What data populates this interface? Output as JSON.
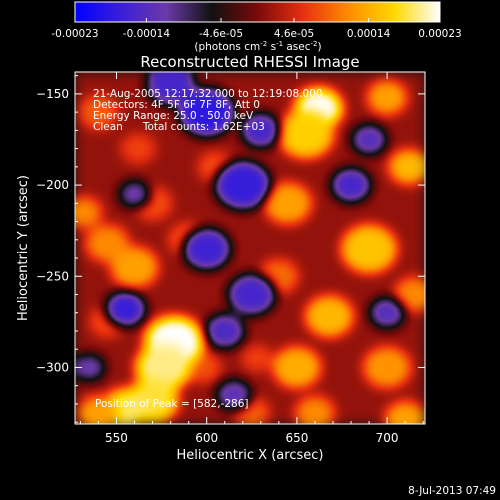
{
  "colorbar": {
    "ticks": [
      "-0.00023",
      "-0.00014",
      "-4.6e-05",
      "4.6e-05",
      "0.00014",
      "0.00023"
    ],
    "units_prefix": "(photons cm",
    "units_exp1": "-2",
    "units_mid": " s",
    "units_exp2": "-1",
    "units_mid2": " asec",
    "units_exp3": "-2",
    "units_suffix": ")",
    "colors": [
      "#0000ff",
      "#3a1fd8",
      "#6a3aa8",
      "#111111",
      "#7a0a0a",
      "#e83010",
      "#ff8c00",
      "#ffd800",
      "#ffffff"
    ]
  },
  "chart_data": {
    "type": "heatmap",
    "title": "Reconstructed RHESSI Image",
    "xlabel": "Heliocentric X (arcsec)",
    "ylabel": "Heliocentric Y (arcsec)",
    "xlim": [
      527,
      721
    ],
    "ylim": [
      -331,
      -138
    ],
    "xticks": [
      550,
      600,
      650,
      700
    ],
    "yticks": [
      -150,
      -200,
      -250,
      -300
    ],
    "info_lines": [
      "21-Aug-2005 12:17:32.000 to 12:19:08.000",
      "Detectors: 4F 5F 6F 7F 8F, Att 0",
      "Energy Range: 25.0 - 50.0 keV",
      "Clean      Total counts: 1.62E+03"
    ],
    "peak_label": "Position of Peak = [582,-286]",
    "peak": [
      582,
      -286
    ],
    "value_range": [
      -0.00023,
      0.00023
    ]
  },
  "footer": {
    "date": "8-Jul-2013 07:49"
  }
}
